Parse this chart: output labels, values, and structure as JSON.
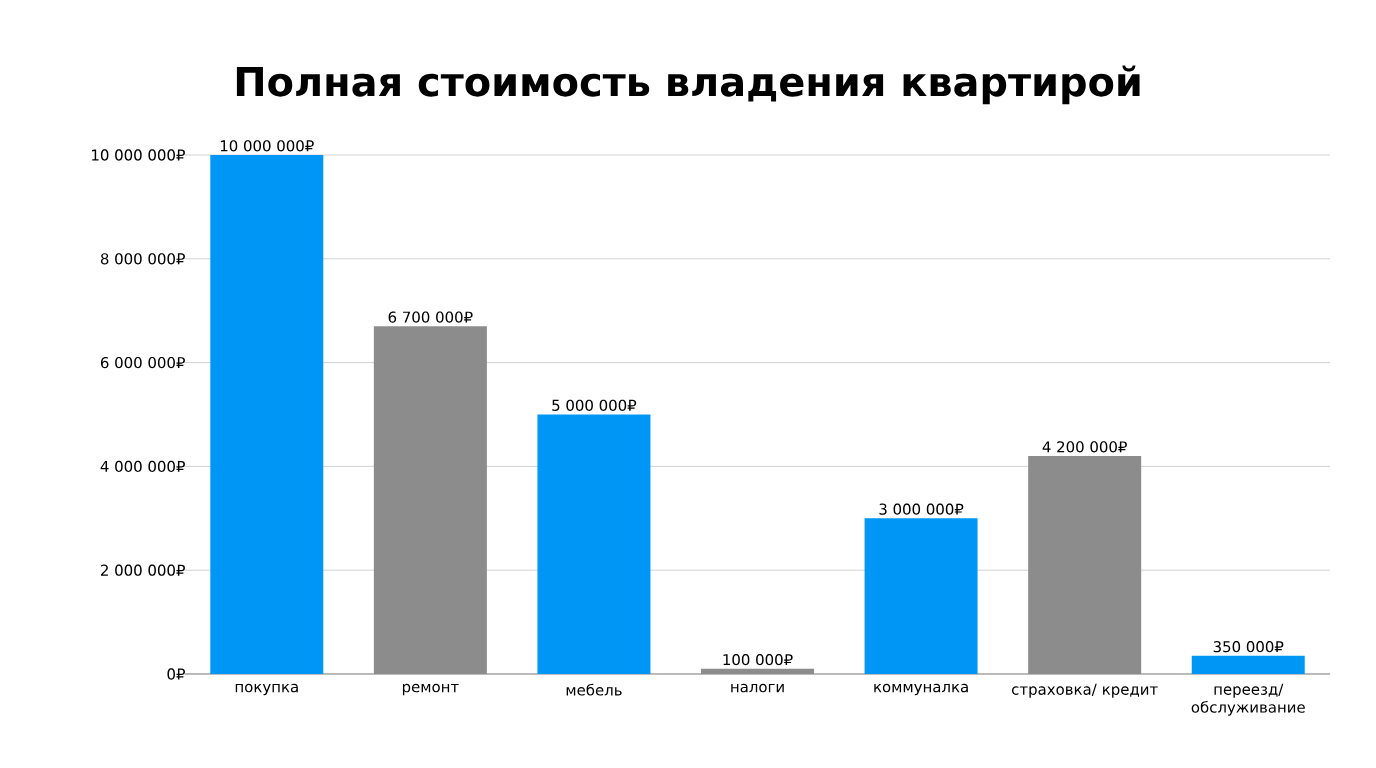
{
  "chart_data": {
    "type": "bar",
    "title": "Полная стоимость владения квартирой",
    "categories": [
      "покупка",
      "ремонт",
      "мебель",
      "налоги",
      "коммуналка",
      "страховка/ кредит",
      "переезд/ обслуживание"
    ],
    "values": [
      10000000,
      6700000,
      5000000,
      100000,
      3000000,
      4200000,
      350000
    ],
    "colors": [
      "#0096f5",
      "#8c8c8c",
      "#0096f5",
      "#8c8c8c",
      "#0096f5",
      "#8c8c8c",
      "#0096f5"
    ],
    "value_labels": [
      "10 000 000₽",
      "6 700 000₽",
      "5 000 000₽",
      "100 000₽",
      "3 000 000₽",
      "4 200 000₽",
      "350 000₽"
    ],
    "ylim": [
      0,
      10000000
    ],
    "yticks": [
      {
        "value": 0,
        "label": "0₽"
      },
      {
        "value": 2000000,
        "label": "2 000 000₽"
      },
      {
        "value": 4000000,
        "label": "4 000 000₽"
      },
      {
        "value": 6000000,
        "label": "6 000 000₽"
      },
      {
        "value": 8000000,
        "label": "8 000 000₽"
      },
      {
        "value": 10000000,
        "label": "10 000 000₽"
      }
    ],
    "grid": "y"
  }
}
